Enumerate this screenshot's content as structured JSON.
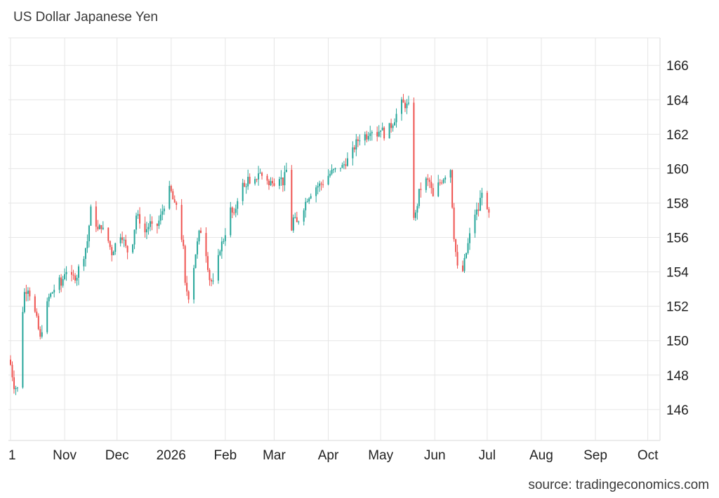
{
  "title": "US Dollar Japanese Yen",
  "source": "source: tradingeconomics.com",
  "colors": {
    "up": "#26a69a",
    "down": "#ef5350",
    "grid": "#e6e6e6",
    "axis": "#222222"
  },
  "chart_data": {
    "type": "candlestick",
    "title": "US Dollar Japanese Yen",
    "xlabel": "",
    "ylabel": "",
    "ylim": [
      144.2,
      167.6
    ],
    "y_ticks": [
      146,
      148,
      150,
      152,
      154,
      156,
      158,
      160,
      162,
      164,
      166
    ],
    "x_ticks": [
      {
        "label": "1",
        "day": 0
      },
      {
        "label": "Nov",
        "day": 31
      },
      {
        "label": "Dec",
        "day": 61
      },
      {
        "label": "2026",
        "day": 92
      },
      {
        "label": "Feb",
        "day": 123
      },
      {
        "label": "Mar",
        "day": 151
      },
      {
        "label": "Apr",
        "day": 182
      },
      {
        "label": "May",
        "day": 212
      },
      {
        "label": "Jun",
        "day": 243
      },
      {
        "label": "Jul",
        "day": 273
      },
      {
        "label": "Aug",
        "day": 304
      },
      {
        "label": "Sep",
        "day": 335
      },
      {
        "label": "Oct",
        "day": 365
      }
    ],
    "x_range_days": [
      0,
      372
    ],
    "close_series": [
      [
        0,
        148.6
      ],
      [
        2,
        147.4
      ],
      [
        4,
        147.2
      ],
      [
        6,
        150.8
      ],
      [
        8,
        152.8
      ],
      [
        10,
        153.1
      ],
      [
        13,
        152.0
      ],
      [
        15,
        151.2
      ],
      [
        17,
        150.1
      ],
      [
        19,
        151.3
      ],
      [
        22,
        152.5
      ],
      [
        25,
        153.0
      ],
      [
        27,
        153.7
      ],
      [
        29,
        153.2
      ],
      [
        31,
        154.0
      ],
      [
        33,
        154.2
      ],
      [
        35,
        153.6
      ],
      [
        38,
        153.8
      ],
      [
        40,
        154.6
      ],
      [
        42,
        155.0
      ],
      [
        44,
        155.8
      ],
      [
        46,
        157.6
      ],
      [
        48,
        157.2
      ],
      [
        50,
        156.4
      ],
      [
        52,
        156.7
      ],
      [
        54,
        156.1
      ],
      [
        56,
        155.8
      ],
      [
        58,
        155.1
      ],
      [
        60,
        155.6
      ],
      [
        62,
        156.3
      ],
      [
        64,
        156.1
      ],
      [
        66,
        155.4
      ],
      [
        68,
        155.0
      ],
      [
        70,
        155.8
      ],
      [
        72,
        157.3
      ],
      [
        74,
        157.0
      ],
      [
        76,
        156.1
      ],
      [
        78,
        156.5
      ],
      [
        80,
        156.8
      ],
      [
        82,
        156.3
      ],
      [
        84,
        156.7
      ],
      [
        86,
        157.2
      ],
      [
        88,
        157.9
      ],
      [
        90,
        158.9
      ],
      [
        92,
        158.6
      ],
      [
        94,
        157.8
      ],
      [
        96,
        158.1
      ],
      [
        98,
        156.0
      ],
      [
        99,
        155.3
      ],
      [
        100,
        153.2
      ],
      [
        102,
        152.6
      ],
      [
        104,
        153.6
      ],
      [
        106,
        155.1
      ],
      [
        108,
        156.2
      ],
      [
        110,
        156.6
      ],
      [
        112,
        155.1
      ],
      [
        114,
        153.6
      ],
      [
        116,
        153.3
      ],
      [
        118,
        154.1
      ],
      [
        120,
        155.4
      ],
      [
        122,
        155.9
      ],
      [
        124,
        156.7
      ],
      [
        126,
        157.6
      ],
      [
        128,
        157.2
      ],
      [
        130,
        158.3
      ],
      [
        132,
        159.2
      ],
      [
        134,
        158.9
      ],
      [
        136,
        159.4
      ],
      [
        138,
        158.5
      ],
      [
        140,
        159.2
      ],
      [
        142,
        159.8
      ],
      [
        144,
        159.6
      ],
      [
        146,
        159.8
      ],
      [
        148,
        159.0
      ],
      [
        150,
        159.4
      ],
      [
        152,
        159.1
      ],
      [
        154,
        159.6
      ],
      [
        156,
        159.2
      ],
      [
        158,
        159.9
      ],
      [
        160,
        160.3
      ],
      [
        161,
        156.5
      ],
      [
        162,
        157.1
      ],
      [
        164,
        156.8
      ],
      [
        166,
        157.3
      ],
      [
        168,
        157.8
      ],
      [
        170,
        158.3
      ],
      [
        172,
        158.6
      ],
      [
        174,
        158.9
      ],
      [
        176,
        159.0
      ],
      [
        178,
        159.1
      ],
      [
        180,
        159.3
      ],
      [
        182,
        159.6
      ],
      [
        184,
        159.8
      ],
      [
        186,
        159.9
      ],
      [
        188,
        160.2
      ],
      [
        190,
        160.1
      ],
      [
        192,
        160.4
      ],
      [
        194,
        160.6
      ],
      [
        196,
        161.0
      ],
      [
        198,
        161.5
      ],
      [
        200,
        161.8
      ],
      [
        202,
        162.0
      ],
      [
        204,
        161.9
      ],
      [
        206,
        162.3
      ],
      [
        208,
        162.2
      ],
      [
        210,
        162.0
      ],
      [
        212,
        162.4
      ],
      [
        214,
        162.0
      ],
      [
        216,
        162.3
      ],
      [
        218,
        162.5
      ],
      [
        220,
        162.9
      ],
      [
        222,
        163.4
      ],
      [
        224,
        163.8
      ],
      [
        226,
        163.7
      ],
      [
        228,
        163.6
      ],
      [
        229,
        158.2
      ],
      [
        230,
        157.3
      ],
      [
        232,
        157.3
      ],
      [
        234,
        158.6
      ],
      [
        236,
        159.1
      ],
      [
        238,
        159.3
      ],
      [
        240,
        159.2
      ],
      [
        242,
        158.3
      ],
      [
        244,
        158.9
      ],
      [
        246,
        159.2
      ],
      [
        248,
        159.5
      ],
      [
        250,
        159.8
      ],
      [
        252,
        160.0
      ],
      [
        253,
        157.9
      ],
      [
        254,
        156.1
      ],
      [
        256,
        154.2
      ],
      [
        258,
        153.5
      ],
      [
        260,
        154.6
      ],
      [
        262,
        155.6
      ],
      [
        264,
        156.6
      ],
      [
        266,
        157.4
      ],
      [
        268,
        157.6
      ],
      [
        270,
        158.8
      ],
      [
        272,
        157.5
      ],
      [
        274,
        157.3
      ]
    ]
  }
}
